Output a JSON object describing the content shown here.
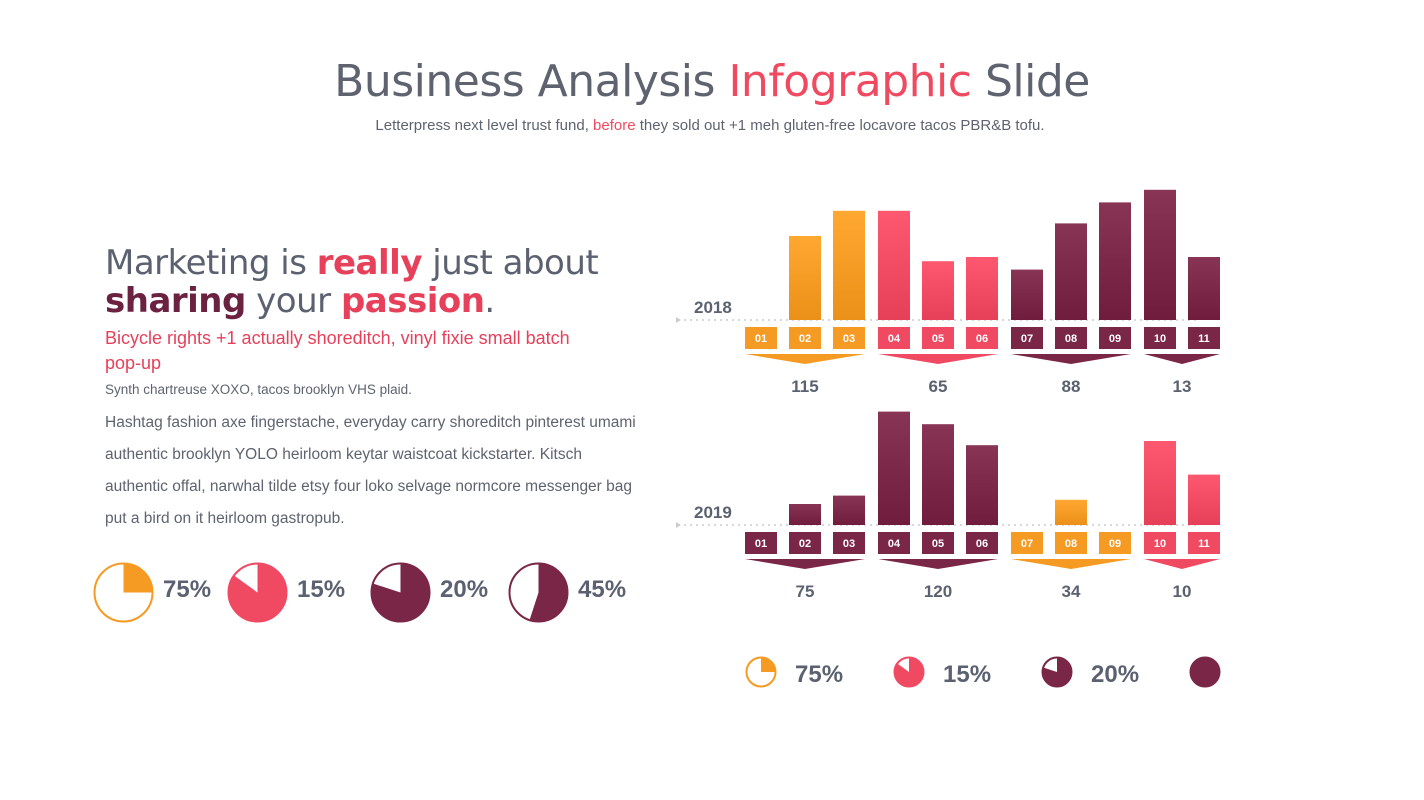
{
  "header": {
    "title_part1": "Business Analysis ",
    "title_accent": "Infographic",
    "title_part2": " Slide",
    "subtitle_part1": "Letterpress next level trust fund, ",
    "subtitle_accent": "before",
    "subtitle_part2": " they sold out +1 meh gluten-free locavore tacos PBR&B tofu."
  },
  "left": {
    "headline": {
      "t1": "Marketing is ",
      "t2": "really",
      "t3": " just about",
      "t4": "sharing",
      "t5": " your ",
      "t6": "passion",
      "t7": "."
    },
    "red_text": "Bicycle rights +1 actually shoreditch, vinyl fixie small batch pop-up",
    "small_text": "Synth chartreuse XOXO, tacos brooklyn VHS plaid.",
    "paragraph": "Hashtag fashion axe fingerstache, everyday carry shoreditch pinterest umami authentic brooklyn YOLO heirloom keytar waistcoat kickstarter. Kitsch authentic offal, narwhal tilde etsy four loko selvage normcore messenger bag put a bird on it heirloom gastropub.",
    "pies": [
      {
        "label": "75%",
        "value": 75,
        "color": "#f59a23"
      },
      {
        "label": "15%",
        "value": 15,
        "color": "#f04a63"
      },
      {
        "label": "20%",
        "value": 20,
        "color": "#7a2646"
      },
      {
        "label": "45%",
        "value": 45,
        "color": "#7a2646"
      }
    ]
  },
  "colors": {
    "orange": "#f59a23",
    "red": "#f04a63",
    "maroon": "#7a2646",
    "text": "#5b6170"
  },
  "chart_data": [
    {
      "type": "bar",
      "title": "",
      "row_label": "2018",
      "categories": [
        "01",
        "02",
        "03",
        "04",
        "05",
        "06",
        "07",
        "08",
        "09",
        "10",
        "11"
      ],
      "values": [
        0,
        20,
        26,
        26,
        14,
        15,
        12,
        23,
        28,
        31,
        15
      ],
      "bar_colors": [
        "orange",
        "orange",
        "orange",
        "red",
        "red",
        "red",
        "maroon",
        "maroon",
        "maroon",
        "maroon",
        "maroon"
      ],
      "group_totals": [
        {
          "label": "115",
          "color": "orange",
          "from": 0,
          "to": 2
        },
        {
          "label": "65",
          "color": "red",
          "from": 3,
          "to": 5
        },
        {
          "label": "88",
          "color": "maroon",
          "from": 6,
          "to": 8
        },
        {
          "label": "13",
          "color": "maroon",
          "from": 9,
          "to": 10
        }
      ]
    },
    {
      "type": "bar",
      "title": "",
      "row_label": "2019",
      "categories": [
        "01",
        "02",
        "03",
        "04",
        "05",
        "06",
        "07",
        "08",
        "09",
        "10",
        "11"
      ],
      "values": [
        0,
        5,
        7,
        27,
        24,
        19,
        0,
        6,
        0,
        20,
        12
      ],
      "bar_colors": [
        "maroon",
        "maroon",
        "maroon",
        "maroon",
        "maroon",
        "maroon",
        "orange",
        "orange",
        "orange",
        "red",
        "red"
      ],
      "group_totals": [
        {
          "label": "75",
          "color": "maroon",
          "from": 0,
          "to": 2
        },
        {
          "label": "120",
          "color": "maroon",
          "from": 3,
          "to": 5
        },
        {
          "label": "34",
          "color": "orange",
          "from": 6,
          "to": 8
        },
        {
          "label": "10",
          "color": "red",
          "from": 9,
          "to": 10
        }
      ]
    }
  ],
  "right_pies": [
    {
      "label": "75%",
      "value": 75,
      "color": "#f59a23"
    },
    {
      "label": "15%",
      "value": 15,
      "color": "#f04a63"
    },
    {
      "label": "20%",
      "value": 20,
      "color": "#7a2646"
    },
    {
      "label": "",
      "value": 0,
      "color": "#7a2646"
    }
  ]
}
